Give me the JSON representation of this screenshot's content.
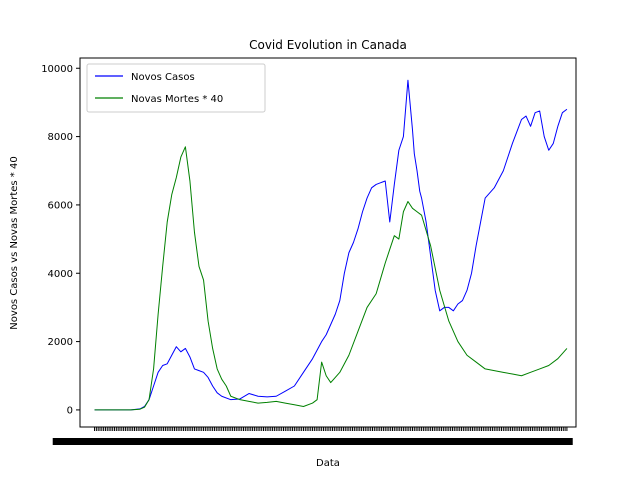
{
  "chart_data": {
    "type": "line",
    "title": "Covid Evolution in Canada",
    "xlabel": "Data",
    "ylabel": "Novos Casos vs Novas Mortes * 40",
    "ylim": [
      -500,
      10300
    ],
    "yticks": [
      0,
      2000,
      4000,
      6000,
      8000,
      10000
    ],
    "ytick_labels": [
      "0",
      "2000",
      "4000",
      "6000",
      "8000",
      "10000"
    ],
    "xlim": [
      -16,
      530
    ],
    "grid": false,
    "legend_position": "top-left",
    "series": [
      {
        "name": "Novos Casos",
        "color": "#0000ff",
        "x": [
          0,
          20,
          40,
          50,
          55,
          60,
          65,
          70,
          75,
          80,
          85,
          90,
          95,
          100,
          105,
          110,
          115,
          120,
          125,
          130,
          135,
          140,
          150,
          160,
          170,
          180,
          190,
          200,
          210,
          220,
          230,
          240,
          250,
          255,
          260,
          265,
          270,
          275,
          280,
          285,
          290,
          295,
          300,
          305,
          310,
          315,
          320,
          325,
          330,
          335,
          340,
          345,
          350,
          352,
          355,
          358,
          360,
          365,
          370,
          375,
          380,
          385,
          390,
          395,
          400,
          405,
          410,
          415,
          420,
          425,
          430,
          440,
          450,
          460,
          470,
          475,
          480,
          485,
          490,
          495,
          500,
          505,
          510,
          515,
          520
        ],
        "y": [
          0,
          0,
          0,
          30,
          100,
          300,
          700,
          1100,
          1300,
          1350,
          1600,
          1850,
          1700,
          1800,
          1550,
          1200,
          1150,
          1100,
          950,
          700,
          500,
          400,
          300,
          320,
          480,
          400,
          380,
          400,
          550,
          700,
          1100,
          1500,
          2000,
          2200,
          2500,
          2800,
          3200,
          4000,
          4600,
          4900,
          5300,
          5800,
          6200,
          6500,
          6600,
          6650,
          6700,
          5500,
          6600,
          7600,
          8000,
          9650,
          8200,
          7500,
          7000,
          6400,
          6200,
          5500,
          4500,
          3500,
          2900,
          3000,
          3000,
          2900,
          3100,
          3200,
          3500,
          4000,
          4800,
          5500,
          6200,
          6500,
          7000,
          7800,
          8500,
          8600,
          8300,
          8700,
          8750,
          8000,
          7600,
          7800,
          8300,
          8700,
          8800
        ]
      },
      {
        "name": "Novas Mortes * 40",
        "color": "#008000",
        "x": [
          0,
          20,
          40,
          50,
          55,
          60,
          65,
          70,
          75,
          80,
          85,
          90,
          95,
          100,
          105,
          110,
          115,
          120,
          125,
          130,
          135,
          140,
          145,
          150,
          160,
          170,
          180,
          190,
          200,
          210,
          220,
          230,
          240,
          245,
          250,
          255,
          260,
          270,
          280,
          290,
          300,
          310,
          320,
          325,
          330,
          335,
          340,
          345,
          350,
          355,
          360,
          370,
          380,
          390,
          400,
          410,
          420,
          430,
          440,
          450,
          460,
          470,
          480,
          490,
          500,
          510,
          520
        ],
        "y": [
          0,
          0,
          0,
          20,
          80,
          300,
          1200,
          2800,
          4200,
          5500,
          6300,
          6800,
          7400,
          7700,
          6700,
          5200,
          4200,
          3800,
          2600,
          1800,
          1200,
          900,
          700,
          400,
          300,
          250,
          200,
          220,
          250,
          200,
          150,
          100,
          200,
          300,
          1400,
          1000,
          800,
          1100,
          1600,
          2300,
          3000,
          3400,
          4300,
          4700,
          5100,
          5000,
          5800,
          6100,
          5900,
          5800,
          5700,
          4800,
          3500,
          2600,
          2000,
          1600,
          1400,
          1200,
          1150,
          1100,
          1050,
          1000,
          1100,
          1200,
          1300,
          1500,
          1800
        ]
      }
    ]
  }
}
